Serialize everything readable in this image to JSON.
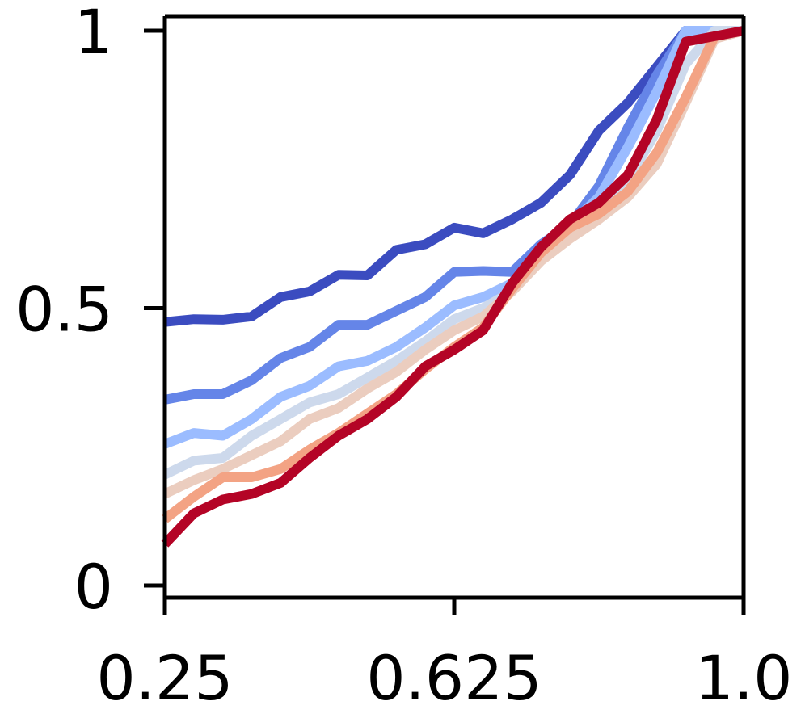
{
  "chart_data": {
    "type": "line",
    "title": "",
    "xlabel": "",
    "ylabel": "",
    "xlim": [
      0.25,
      1.0
    ],
    "ylim": [
      0,
      1
    ],
    "grid": false,
    "legend": "none",
    "xticks": [
      {
        "value": 0.25,
        "label": "0.25"
      },
      {
        "value": 0.625,
        "label": "0.625"
      },
      {
        "value": 1.0,
        "label": "1.0"
      }
    ],
    "yticks": [
      {
        "value": 0,
        "label": "0"
      },
      {
        "value": 0.5,
        "label": "0.5"
      },
      {
        "value": 1,
        "label": "1"
      }
    ],
    "x": [
      0.25,
      0.2875,
      0.325,
      0.3625,
      0.4,
      0.4375,
      0.475,
      0.5125,
      0.55,
      0.5875,
      0.625,
      0.6625,
      0.7,
      0.7375,
      0.775,
      0.8125,
      0.85,
      0.8875,
      0.925,
      0.9625,
      1.0
    ],
    "series": [
      {
        "color": "#3b4cc0",
        "values": [
          0.475,
          0.48,
          0.479,
          0.485,
          0.52,
          0.53,
          0.56,
          0.559,
          0.605,
          0.615,
          0.645,
          0.635,
          0.66,
          0.69,
          0.74,
          0.82,
          0.87,
          0.935,
          1.0,
          1.0,
          1.0
        ]
      },
      {
        "color": "#6585e8",
        "values": [
          0.335,
          0.345,
          0.345,
          0.37,
          0.41,
          0.43,
          0.47,
          0.47,
          0.495,
          0.52,
          0.565,
          0.567,
          0.565,
          0.615,
          0.65,
          0.72,
          0.825,
          0.92,
          1.0,
          1.0,
          1.0
        ]
      },
      {
        "color": "#9bbcff",
        "values": [
          0.255,
          0.275,
          0.27,
          0.3,
          0.34,
          0.36,
          0.395,
          0.405,
          0.43,
          0.465,
          0.505,
          0.52,
          0.545,
          0.6,
          0.65,
          0.7,
          0.79,
          0.89,
          1.0,
          1.0,
          1.0
        ]
      },
      {
        "color": "#cdd9ec",
        "values": [
          0.2,
          0.225,
          0.23,
          0.27,
          0.3,
          0.33,
          0.345,
          0.375,
          0.405,
          0.44,
          0.48,
          0.5,
          0.53,
          0.59,
          0.63,
          0.68,
          0.73,
          0.82,
          0.94,
          1.0,
          1.0
        ]
      },
      {
        "color": "#ebcdbf",
        "values": [
          0.165,
          0.19,
          0.21,
          0.235,
          0.26,
          0.3,
          0.32,
          0.355,
          0.385,
          0.425,
          0.46,
          0.485,
          0.53,
          0.585,
          0.625,
          0.66,
          0.7,
          0.76,
          0.87,
          0.985,
          1.0
        ]
      },
      {
        "color": "#f3a384",
        "values": [
          0.12,
          0.16,
          0.195,
          0.195,
          0.21,
          0.245,
          0.275,
          0.31,
          0.345,
          0.39,
          0.43,
          0.465,
          0.535,
          0.6,
          0.645,
          0.67,
          0.71,
          0.78,
          0.88,
          0.99,
          1.0
        ]
      },
      {
        "color": "#b40426",
        "values": [
          0.075,
          0.13,
          0.155,
          0.165,
          0.185,
          0.23,
          0.27,
          0.3,
          0.34,
          0.395,
          0.425,
          0.46,
          0.545,
          0.61,
          0.66,
          0.69,
          0.74,
          0.84,
          0.98,
          0.99,
          1.0
        ]
      }
    ]
  }
}
